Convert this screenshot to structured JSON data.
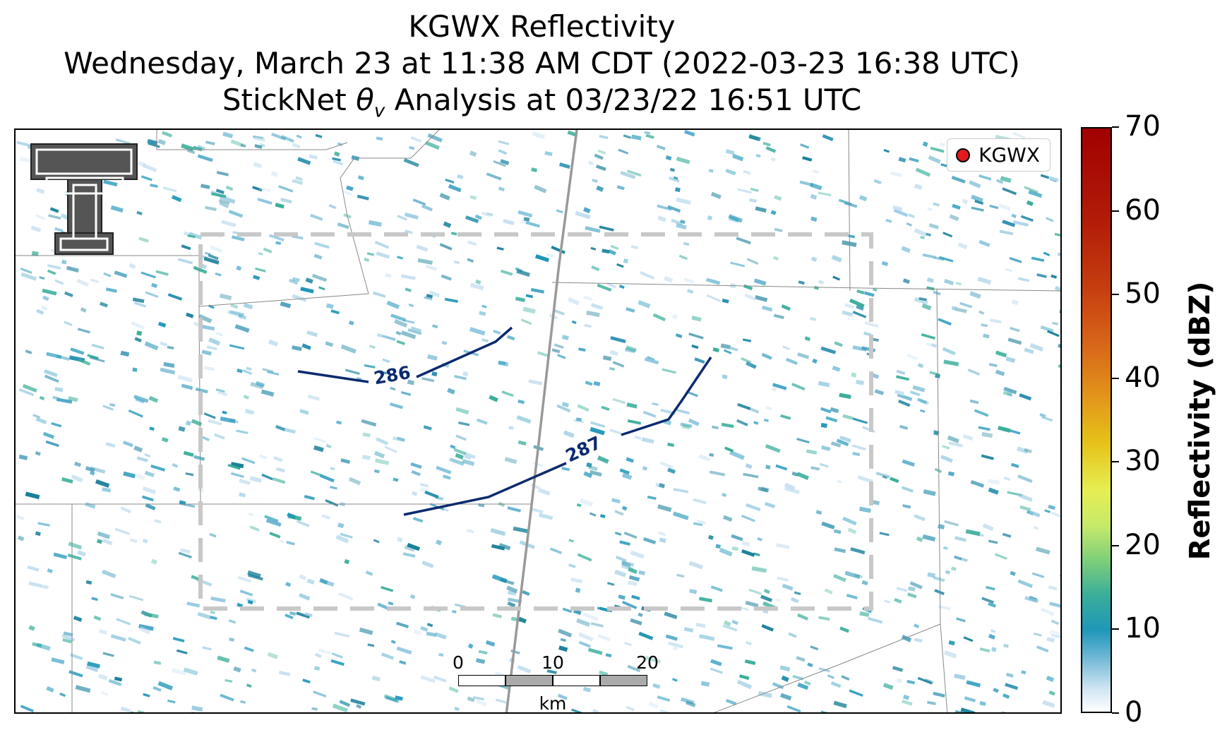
{
  "title": {
    "line1": "KGWX Reflectivity",
    "line2": "Wednesday, March 23 at 11:38 AM CDT (2022-03-23 16:38 UTC)",
    "line3_prefix": "StickNet ",
    "line3_symbol": "θ",
    "line3_sub": "v",
    "line3_suffix": " Analysis at 03/23/22 16:51 UTC"
  },
  "legend": {
    "label": "KGWX",
    "marker_color": "#e31a1c"
  },
  "contours": [
    {
      "label": "286",
      "color": "#0b2a6f"
    },
    {
      "label": "287",
      "color": "#0b2a6f"
    }
  ],
  "scalebar": {
    "ticks": [
      "0",
      "10",
      "20"
    ],
    "unit": "km"
  },
  "colorbar": {
    "title": "Reflectivity (dBZ)",
    "min": 0,
    "max": 70,
    "ticks": [
      "0",
      "10",
      "20",
      "30",
      "40",
      "50",
      "60",
      "70"
    ],
    "colors": [
      "#ffffff",
      "#1f96b8",
      "#7fcf7a",
      "#e6ee52",
      "#e2951a",
      "#c74010",
      "#a10000"
    ]
  },
  "logo": {
    "name": "Texas Tech double-T",
    "color": "#555555"
  }
}
